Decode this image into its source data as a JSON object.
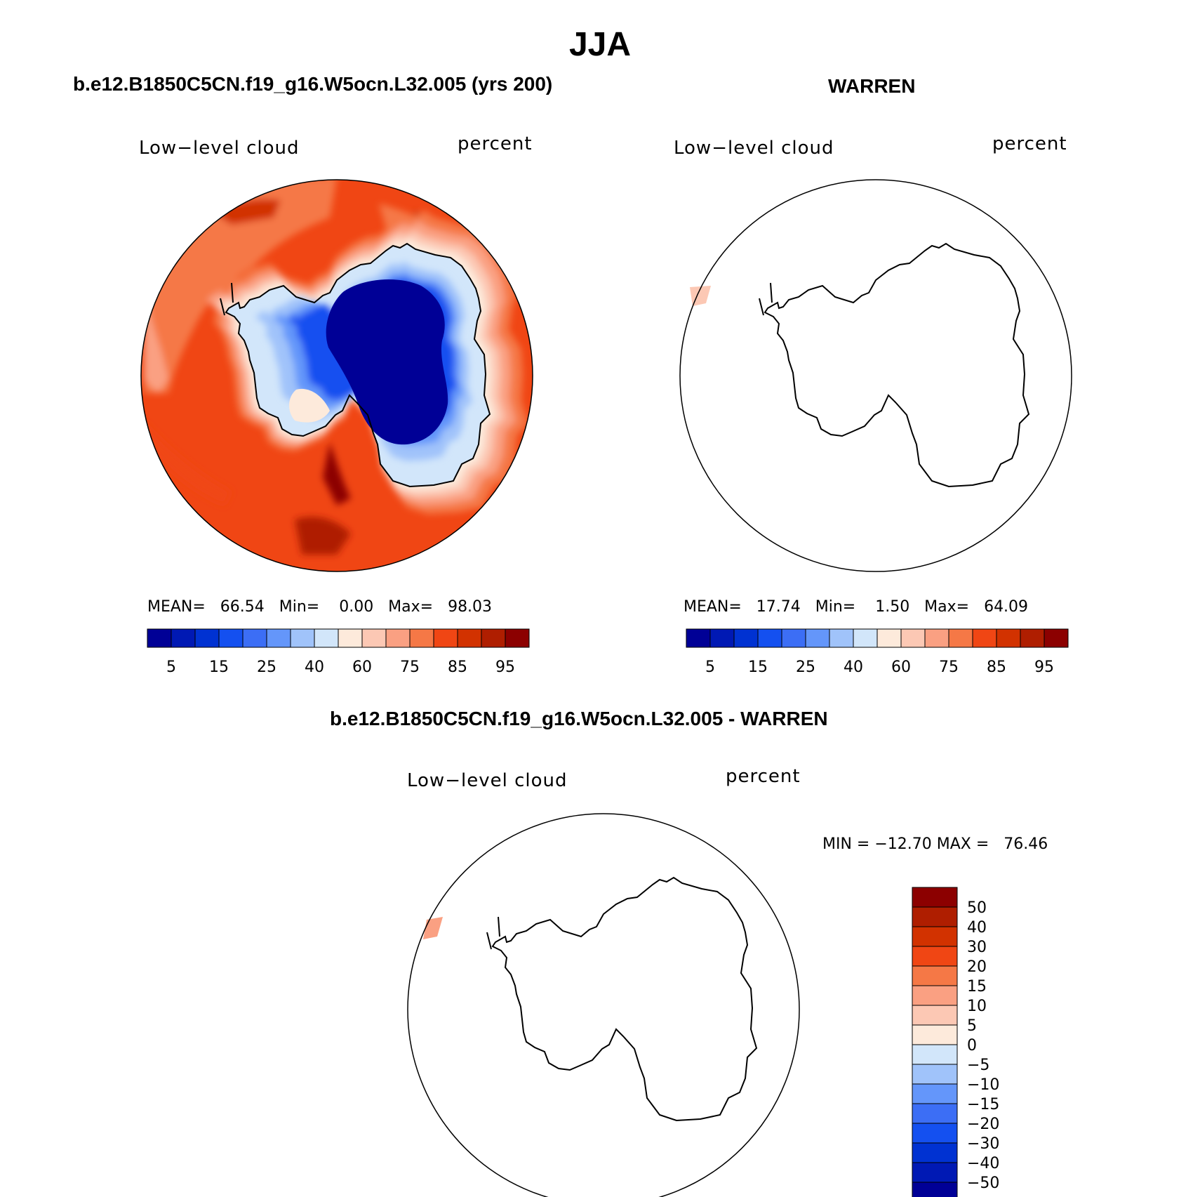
{
  "title": "JJA",
  "panels": [
    {
      "case_name": "b.e12.B1850C5CN.f19_g16.W5ocn.L32.005 (yrs 200)",
      "variable": "Low−level cloud",
      "units": "percent",
      "stats": "MEAN=   66.54   Min=    0.00   Max=   98.03"
    },
    {
      "case_name": "WARREN",
      "variable": "Low−level cloud",
      "units": "percent",
      "stats": "MEAN=   17.74   Min=    1.50   Max=   64.09"
    },
    {
      "case_name": "b.e12.B1850C5CN.f19_g16.W5ocn.L32.005 - WARREN",
      "variable": "Low−level cloud",
      "units": "percent",
      "stats": "MIN = −12.70 MAX =   76.46"
    }
  ],
  "colorbar_abs": {
    "colors": [
      "#000096",
      "#0019b4",
      "#0032d2",
      "#1450f0",
      "#3c6ef5",
      "#6496fa",
      "#a0c3fa",
      "#d2e6fa",
      "#fdeadb",
      "#fcc8b4",
      "#faa082",
      "#f57846",
      "#f04614",
      "#d23200",
      "#af1e00",
      "#8c0000"
    ],
    "tick_labels": [
      "5",
      "15",
      "25",
      "40",
      "60",
      "75",
      "85",
      "95"
    ]
  },
  "colorbar_diff": {
    "colors": [
      "#8c0000",
      "#af1e00",
      "#d23200",
      "#f04614",
      "#f57846",
      "#faa082",
      "#fcc8b4",
      "#fdeadb",
      "#d2e6fa",
      "#a0c3fa",
      "#6496fa",
      "#3c6ef5",
      "#1450f0",
      "#0032d2",
      "#0019b4",
      "#000096"
    ],
    "tick_labels": [
      "50",
      "40",
      "30",
      "20",
      "15",
      "10",
      "5",
      "0",
      "−5",
      "−10",
      "−15",
      "−20",
      "−30",
      "−40",
      "−50"
    ]
  }
}
